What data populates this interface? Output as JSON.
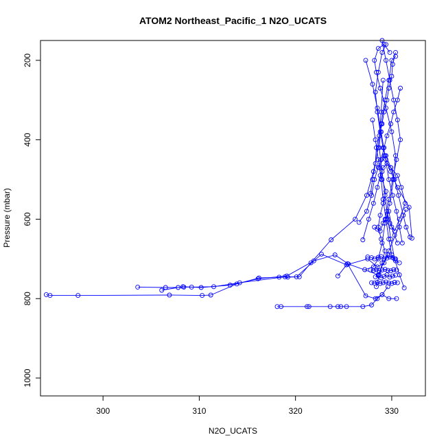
{
  "chart_data": {
    "type": "line",
    "title": "ATOM2 Northeast_Pacific_1 N2O_UCATS",
    "xlabel": "N2O_UCATS",
    "ylabel": "Pressure (mbar)",
    "xlim": [
      293.5,
      333.5
    ],
    "ylim": [
      1045,
      150
    ],
    "y_reversed": true,
    "grid": false,
    "x_ticks": [
      300,
      310,
      320,
      330
    ],
    "y_ticks": [
      200,
      400,
      600,
      800,
      1000
    ],
    "series_color": "#0000ff",
    "marker": "open-circle",
    "series": [
      {
        "x": [
          294.1,
          294.5,
          297.4,
          306.9,
          310.3,
          311.2,
          313.9,
          316.2,
          318.3,
          319.2,
          320.4,
          321.6,
          323.7,
          326.2,
          327.4,
          328.1,
          328.6,
          328.9,
          329.1
        ],
        "y": [
          790,
          792,
          792,
          791,
          792,
          791,
          763,
          748,
          746,
          746,
          745,
          710,
          652,
          600,
          540,
          480,
          420,
          330,
          250
        ]
      },
      {
        "x": [
          303.6,
          306.5,
          307.8,
          308.4,
          309.2,
          311.5,
          314.2,
          318.9,
          320.1,
          322.7,
          325.3,
          327.5,
          328.5,
          329.2,
          329.6
        ],
        "y": [
          771,
          772,
          772,
          771,
          771,
          770,
          760,
          745,
          745,
          688,
          715,
          700,
          720,
          710,
          690
        ]
      },
      {
        "x": [
          306.1,
          308.3,
          310.2,
          313.2,
          316.1,
          319.1,
          321.9,
          324.1,
          325.5,
          328.6,
          329.7,
          331.5
        ],
        "y": [
          779,
          770,
          772,
          766,
          750,
          743,
          705,
          690,
          713,
          740,
          680,
          575
        ]
      },
      {
        "x": [
          318.1,
          318.5,
          321.2,
          321.4,
          323.6,
          324.4,
          324.7,
          325.3,
          327.0,
          327.9,
          328.5,
          329.0,
          329.6
        ],
        "y": [
          820,
          820,
          820,
          820,
          820,
          820,
          820,
          820,
          820,
          816,
          800,
          790,
          770
        ]
      },
      {
        "x": [
          324.4,
          325.4,
          327.3,
          328.3,
          329.0,
          329.7,
          330.5
        ],
        "y": [
          743,
          712,
          793,
          800,
          790,
          800,
          800
        ]
      },
      {
        "x": [
          327.2,
          328.1,
          328.6,
          329.0,
          329.3,
          329.8,
          330.2,
          330.4,
          330.0,
          329.4,
          328.8,
          328.4,
          328.2,
          328.6,
          329.2,
          329.8
        ],
        "y": [
          727,
          720,
          700,
          660,
          610,
          560,
          500,
          440,
          380,
          320,
          270,
          230,
          200,
          170,
          160,
          180
        ]
      },
      {
        "x": [
          331.3,
          330.8,
          330.3,
          329.9,
          329.6,
          329.3,
          329.0,
          328.7,
          328.9,
          329.3,
          329.7,
          330.0,
          330.4
        ],
        "y": [
          773,
          740,
          700,
          650,
          600,
          540,
          480,
          420,
          360,
          300,
          250,
          200,
          190
        ]
      },
      {
        "x": [
          332.1,
          331.8,
          330.6,
          329.9,
          329.4,
          329.1,
          328.8,
          328.5,
          328.3,
          328.6,
          329.0,
          329.4
        ],
        "y": [
          648,
          570,
          520,
          480,
          450,
          420,
          380,
          330,
          280,
          230,
          180,
          160
        ]
      },
      {
        "x": [
          327.0,
          327.6,
          328.1,
          328.5,
          328.8,
          329.1,
          329.5,
          329.9,
          330.3,
          330.7,
          331.2,
          331.5,
          331.9
        ],
        "y": [
          652,
          600,
          560,
          520,
          490,
          470,
          460,
          470,
          500,
          540,
          590,
          620,
          645
        ]
      },
      {
        "x": [
          326.6,
          327.4,
          327.9,
          328.2,
          328.6,
          328.9,
          329.2,
          329.5,
          329.9,
          330.2,
          330.6,
          330.9
        ],
        "y": [
          608,
          580,
          540,
          500,
          470,
          450,
          420,
          390,
          360,
          330,
          300,
          270
        ]
      },
      {
        "x": [
          327.8,
          328.0,
          328.3,
          328.4,
          328.7,
          329.0,
          329.2,
          329.5,
          329.7,
          330.0,
          330.1,
          330.4
        ],
        "y": [
          535,
          500,
          460,
          420,
          390,
          360,
          330,
          300,
          270,
          240,
          210,
          180
        ]
      },
      {
        "x": [
          327.3,
          328.0,
          328.5,
          328.9,
          329.3,
          329.7,
          330.1,
          330.5,
          330.8,
          331.1
        ],
        "y": [
          200,
          260,
          320,
          380,
          440,
          500,
          540,
          580,
          620,
          660
        ]
      },
      {
        "x": [
          328.0,
          328.3,
          328.6,
          328.9,
          329.1,
          329.4,
          329.7,
          330.0,
          330.4,
          330.8
        ],
        "y": [
          350,
          400,
          450,
          500,
          550,
          600,
          650,
          690,
          705,
          710
        ]
      },
      {
        "x": [
          327.5,
          327.9,
          328.2,
          328.6,
          328.9,
          329.2,
          329.5,
          329.8,
          330.1,
          330.4
        ],
        "y": [
          695,
          697,
          700,
          696,
          694,
          700,
          698,
          695,
          697,
          700
        ]
      },
      {
        "x": [
          327.8,
          328.1,
          328.4,
          328.7,
          329.0,
          329.3,
          329.6,
          329.9,
          330.2,
          330.5
        ],
        "y": [
          728,
          729,
          727,
          730,
          728,
          726,
          729,
          730,
          727,
          728
        ]
      },
      {
        "x": [
          327.9,
          328.2,
          328.5,
          328.8,
          329.1,
          329.4,
          329.7,
          330.0,
          330.3,
          330.6
        ],
        "y": [
          760,
          761,
          759,
          762,
          760,
          758,
          761,
          762,
          759,
          760
        ]
      },
      {
        "x": [
          328.3,
          328.6,
          328.9,
          329.2,
          329.5,
          329.8,
          330.1,
          330.4
        ],
        "y": [
          745,
          742,
          748,
          744,
          740,
          746,
          743,
          741
        ]
      },
      {
        "x": [
          328.4,
          328.7,
          329.0,
          329.3,
          328.9,
          328.6,
          328.8,
          329.1,
          329.4,
          329.0,
          328.7,
          329.2
        ],
        "y": [
          770,
          740,
          710,
          680,
          650,
          620,
          590,
          560,
          530,
          500,
          470,
          440
        ]
      },
      {
        "x": [
          328.2,
          328.5,
          328.8,
          329.1,
          329.4,
          329.7,
          330.0,
          330.3,
          330.6
        ],
        "y": [
          620,
          625,
          630,
          610,
          600,
          580,
          620,
          640,
          660
        ]
      },
      {
        "x": [
          329.4,
          329.9,
          330.6,
          331.0,
          331.4,
          330.8,
          330.3,
          329.8,
          329.5
        ],
        "y": [
          440,
          470,
          490,
          520,
          560,
          600,
          630,
          610,
          580
        ]
      },
      {
        "x": [
          329.0,
          329.4,
          329.8,
          330.2,
          330.6,
          330.9,
          330.5,
          330.1,
          329.7,
          329.3
        ],
        "y": [
          150,
          200,
          250,
          300,
          350,
          400,
          450,
          500,
          550,
          600
        ]
      }
    ]
  }
}
